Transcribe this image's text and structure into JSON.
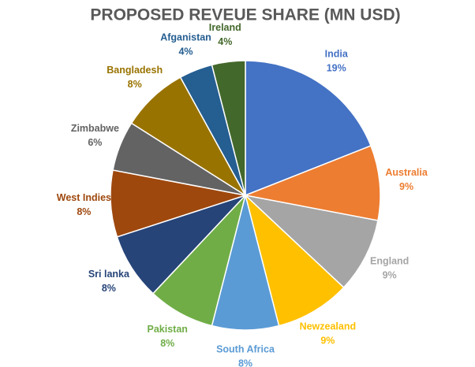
{
  "chart_data": {
    "type": "pie",
    "title": "PROPOSED REVEUE SHARE (MN USD)",
    "categories": [
      "India",
      "Australia",
      "England",
      "Newzealand",
      "South Africa",
      "Pakistan",
      "Sri lanka",
      "West Indies",
      "Zimbabwe",
      "Bangladesh",
      "Afganistan",
      "Ireland"
    ],
    "values": [
      19,
      9,
      9,
      9,
      8,
      8,
      8,
      8,
      6,
      8,
      4,
      4
    ],
    "value_labels": [
      "19%",
      "9%",
      "9%",
      "9%",
      "8%",
      "8%",
      "8%",
      "8%",
      "6%",
      "8%",
      "4%",
      "4%"
    ],
    "colors": [
      "#4472c4",
      "#ed7d31",
      "#a5a5a5",
      "#ffc000",
      "#5b9bd5",
      "#70ad47",
      "#264478",
      "#9e480e",
      "#636363",
      "#997300",
      "#255e91",
      "#43682b"
    ]
  }
}
